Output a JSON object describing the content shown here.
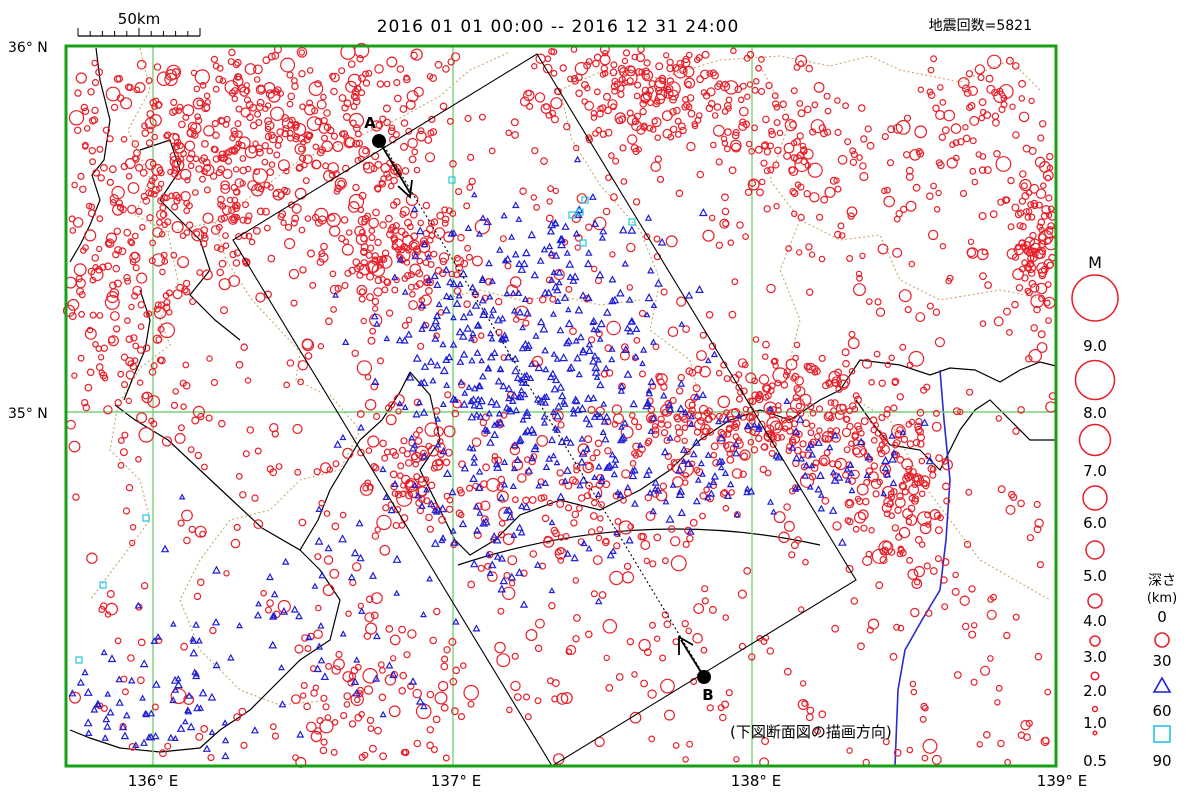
{
  "title": {
    "date_range": "2016 01 01 00:00  --  2016 12 31 24:00",
    "count_label": "地震回数=5821"
  },
  "scale_bar": {
    "label": "50km"
  },
  "axes": {
    "lat_labels": [
      "36° N",
      "35° N"
    ],
    "lon_labels": [
      "136° E",
      "137° E",
      "138° E",
      "139° E"
    ]
  },
  "section": {
    "point_a": "A",
    "point_b": "B",
    "note": "(下図断面図の描画方向)"
  },
  "legend": {
    "magnitude": {
      "title": "M",
      "labels": [
        "9.0",
        "8.0",
        "7.0",
        "6.0",
        "5.0",
        "4.0",
        "3.0",
        "2.0",
        "1.0",
        "0.5"
      ]
    },
    "depth": {
      "title": "深さ",
      "unit": "(km)",
      "labels": [
        "0",
        "30",
        "60",
        "90"
      ]
    }
  },
  "colors": {
    "shallow": "#e8202a",
    "mid": "#1f1fd6",
    "deep": "#22c8e0",
    "grid": "#79d279",
    "frame": "#16a016",
    "river": "#2a2ad0",
    "border": "#c9a66b"
  },
  "chart_data": {
    "type": "scatter",
    "x_range": [
      135.7,
      139.0
    ],
    "y_range": [
      34.1,
      36.0
    ],
    "total_events": 5821,
    "depth_classes_km": [
      0,
      30,
      60,
      90
    ],
    "magnitude_scale": [
      9.0,
      8.0,
      7.0,
      6.0,
      5.0,
      4.0,
      3.0,
      2.0,
      1.0,
      0.5
    ],
    "clusters": [
      {
        "lon": 136.92,
        "lat": 35.9,
        "depth_class": 0,
        "density": "high"
      },
      {
        "lon": 137.62,
        "lat": 35.85,
        "depth_class": 0,
        "density": "high"
      },
      {
        "lon": 138.95,
        "lat": 35.55,
        "depth_class": 0,
        "density": "high"
      },
      {
        "lon": 136.72,
        "lat": 35.38,
        "depth_class": 0,
        "density": "high"
      },
      {
        "lon": 137.35,
        "lat": 35.05,
        "depth_class": 30,
        "density": "high"
      },
      {
        "lon": 138.5,
        "lat": 34.82,
        "depth_class": 0,
        "density": "high"
      }
    ]
  }
}
